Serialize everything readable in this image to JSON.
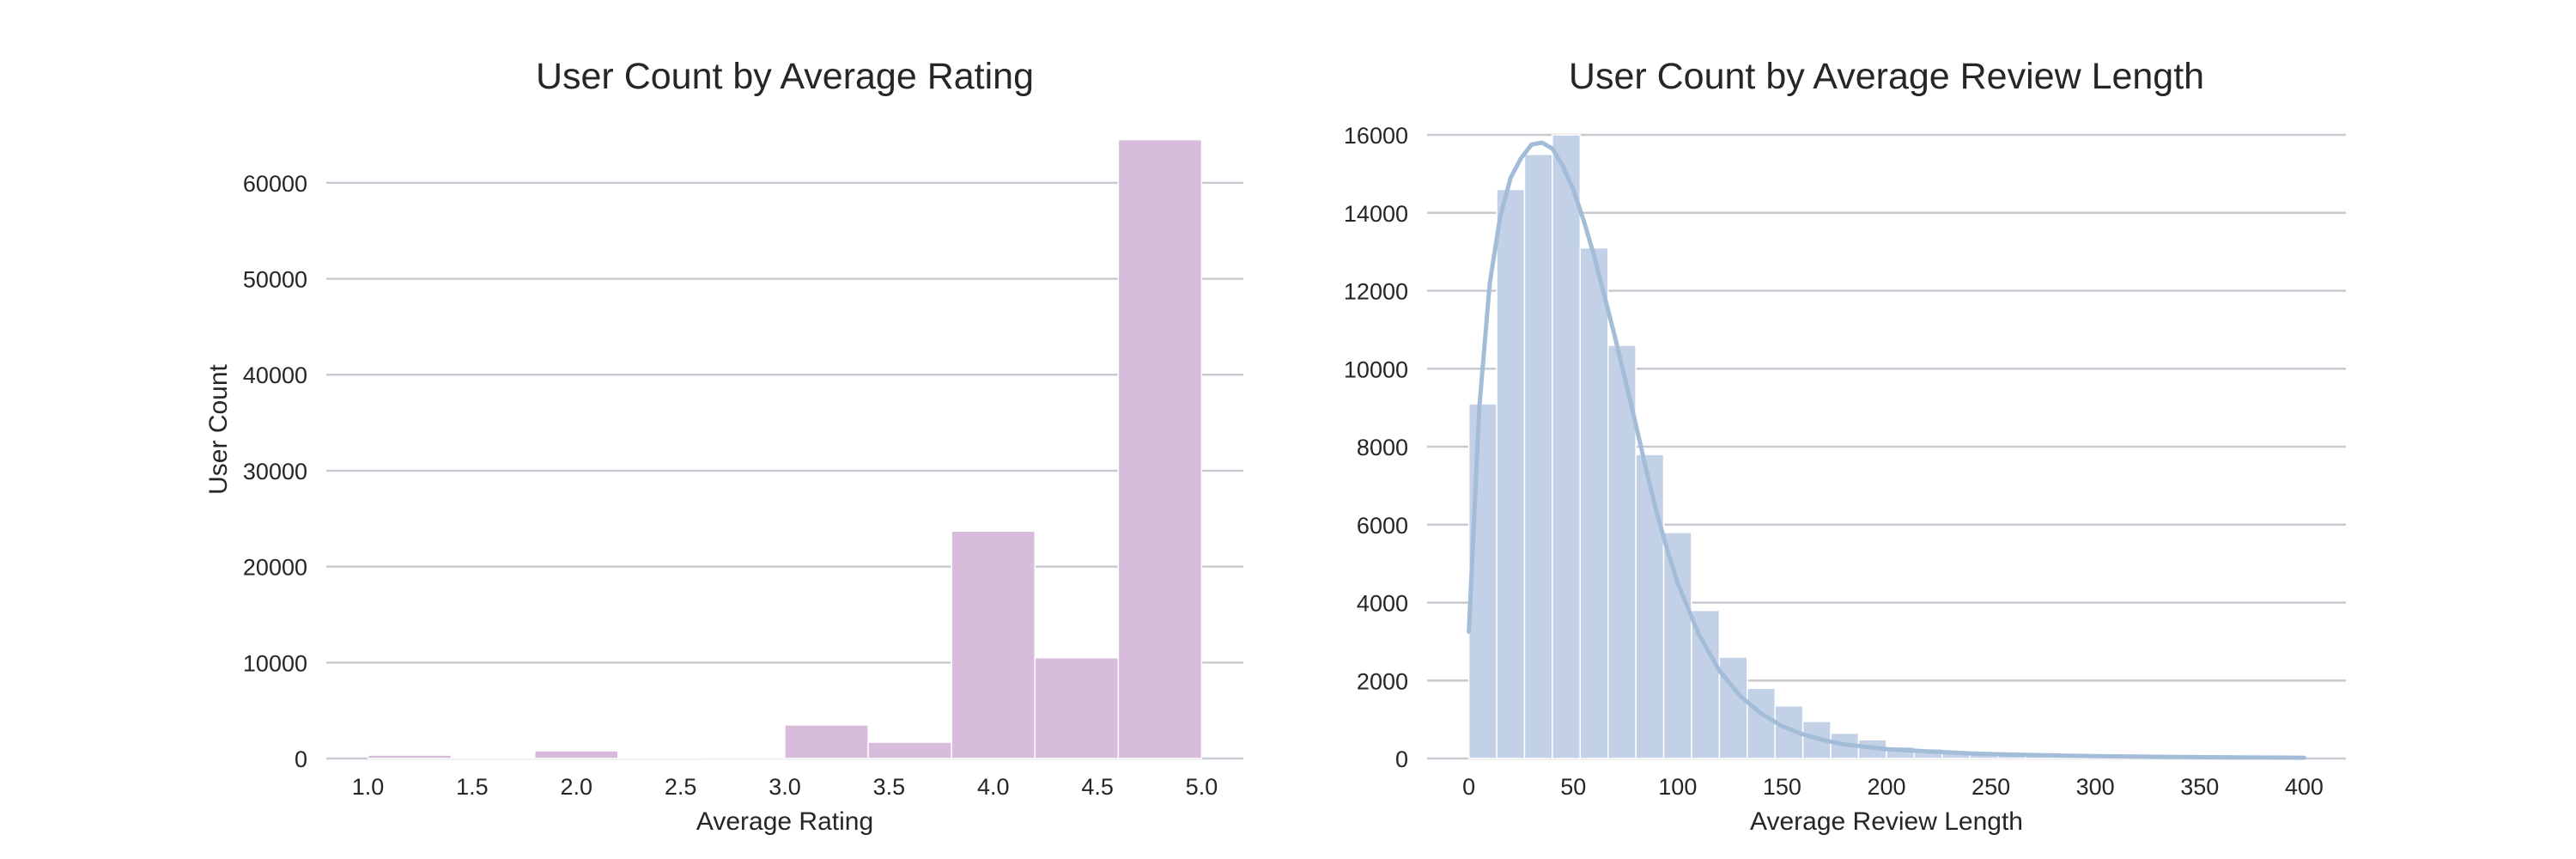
{
  "chart_data": [
    {
      "type": "bar",
      "title": "User Count by Average Rating",
      "xlabel": "Average Rating",
      "ylabel": "User Count",
      "xlim": [
        0.8,
        5.2
      ],
      "ylim": [
        0,
        65000
      ],
      "xticks": [
        "1.0",
        "1.5",
        "2.0",
        "2.5",
        "3.0",
        "3.5",
        "4.0",
        "4.5",
        "5.0"
      ],
      "yticks": [
        "0",
        "10000",
        "20000",
        "30000",
        "40000",
        "50000",
        "60000"
      ],
      "grid": true,
      "color": "#d7bcdb",
      "bins": [
        {
          "x0": 1.0,
          "x1": 1.4,
          "value": 350
        },
        {
          "x0": 1.4,
          "x1": 1.8,
          "value": 120
        },
        {
          "x0": 1.8,
          "x1": 2.2,
          "value": 800
        },
        {
          "x0": 2.2,
          "x1": 2.6,
          "value": 60
        },
        {
          "x0": 2.6,
          "x1": 3.0,
          "value": 150
        },
        {
          "x0": 3.0,
          "x1": 3.4,
          "value": 3500
        },
        {
          "x0": 3.4,
          "x1": 3.8,
          "value": 1700
        },
        {
          "x0": 3.8,
          "x1": 4.2,
          "value": 23700
        },
        {
          "x0": 4.2,
          "x1": 4.6,
          "value": 10500
        },
        {
          "x0": 4.6,
          "x1": 5.0,
          "value": 64500
        }
      ]
    },
    {
      "type": "bar",
      "title": "User Count by Average Review Length",
      "xlabel": "Average Review Length",
      "ylabel": "",
      "xlim": [
        -20,
        420
      ],
      "ylim": [
        0,
        16000
      ],
      "xticks": [
        "0",
        "50",
        "100",
        "150",
        "200",
        "250",
        "300",
        "350",
        "400"
      ],
      "yticks": [
        "0",
        "2000",
        "4000",
        "6000",
        "8000",
        "10000",
        "12000",
        "14000",
        "16000"
      ],
      "grid": true,
      "color": "#c3d1e7",
      "kde_color": "#a3bdd9",
      "bin_width": 13.33,
      "values": [
        9100,
        14600,
        15500,
        16000,
        13100,
        10600,
        7800,
        5800,
        3800,
        2600,
        1800,
        1350,
        950,
        650,
        480,
        300,
        250,
        190,
        140,
        110,
        90,
        70,
        60,
        50,
        40,
        30,
        25,
        20,
        15,
        10
      ],
      "kde_x": [
        0,
        5,
        10,
        15,
        20,
        25,
        30,
        35,
        40,
        45,
        50,
        55,
        60,
        65,
        70,
        75,
        80,
        85,
        90,
        95,
        100,
        110,
        120,
        130,
        140,
        150,
        160,
        170,
        180,
        190,
        200,
        220,
        240,
        260,
        280,
        300,
        320,
        340,
        360,
        380,
        400
      ],
      "kde_y": [
        3250,
        9000,
        12200,
        13900,
        14900,
        15400,
        15750,
        15800,
        15650,
        15200,
        14600,
        13800,
        12900,
        11850,
        10800,
        9700,
        8550,
        7400,
        6300,
        5350,
        4500,
        3200,
        2250,
        1600,
        1150,
        830,
        620,
        470,
        360,
        300,
        240,
        180,
        130,
        100,
        80,
        60,
        50,
        40,
        30,
        25,
        20
      ]
    }
  ]
}
